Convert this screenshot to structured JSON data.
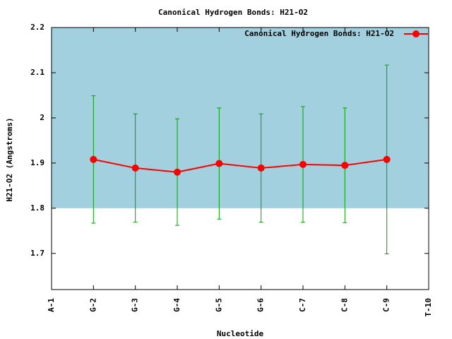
{
  "chart_data": {
    "type": "line",
    "title": "Canonical Hydrogen Bonds: H21-O2",
    "x_label": "Nucleotide",
    "y_label": "H21-O2 (Angstroms)",
    "categories": [
      "A-1",
      "G-2",
      "G-3",
      "G-4",
      "G-5",
      "G-6",
      "C-7",
      "C-8",
      "C-9",
      "T-10"
    ],
    "series": [
      {
        "name": "Canonical Hydrogen Bonds: H21-O2",
        "color": "#ff0000",
        "error_color": "#00a000",
        "values": [
          null,
          1.908,
          1.889,
          1.88,
          1.899,
          1.889,
          1.897,
          1.895,
          1.908,
          null
        ],
        "errors": [
          null,
          0.141,
          0.12,
          0.118,
          0.123,
          0.12,
          0.128,
          0.127,
          0.209,
          null
        ]
      }
    ],
    "shaded_range": [
      1.8,
      2.2
    ],
    "shaded_color": "#a3d0df",
    "ylim": [
      1.62,
      2.2
    ],
    "yticks": [
      1.7,
      1.8,
      1.9,
      2,
      2.1,
      2.2
    ],
    "legend": "top-right"
  }
}
